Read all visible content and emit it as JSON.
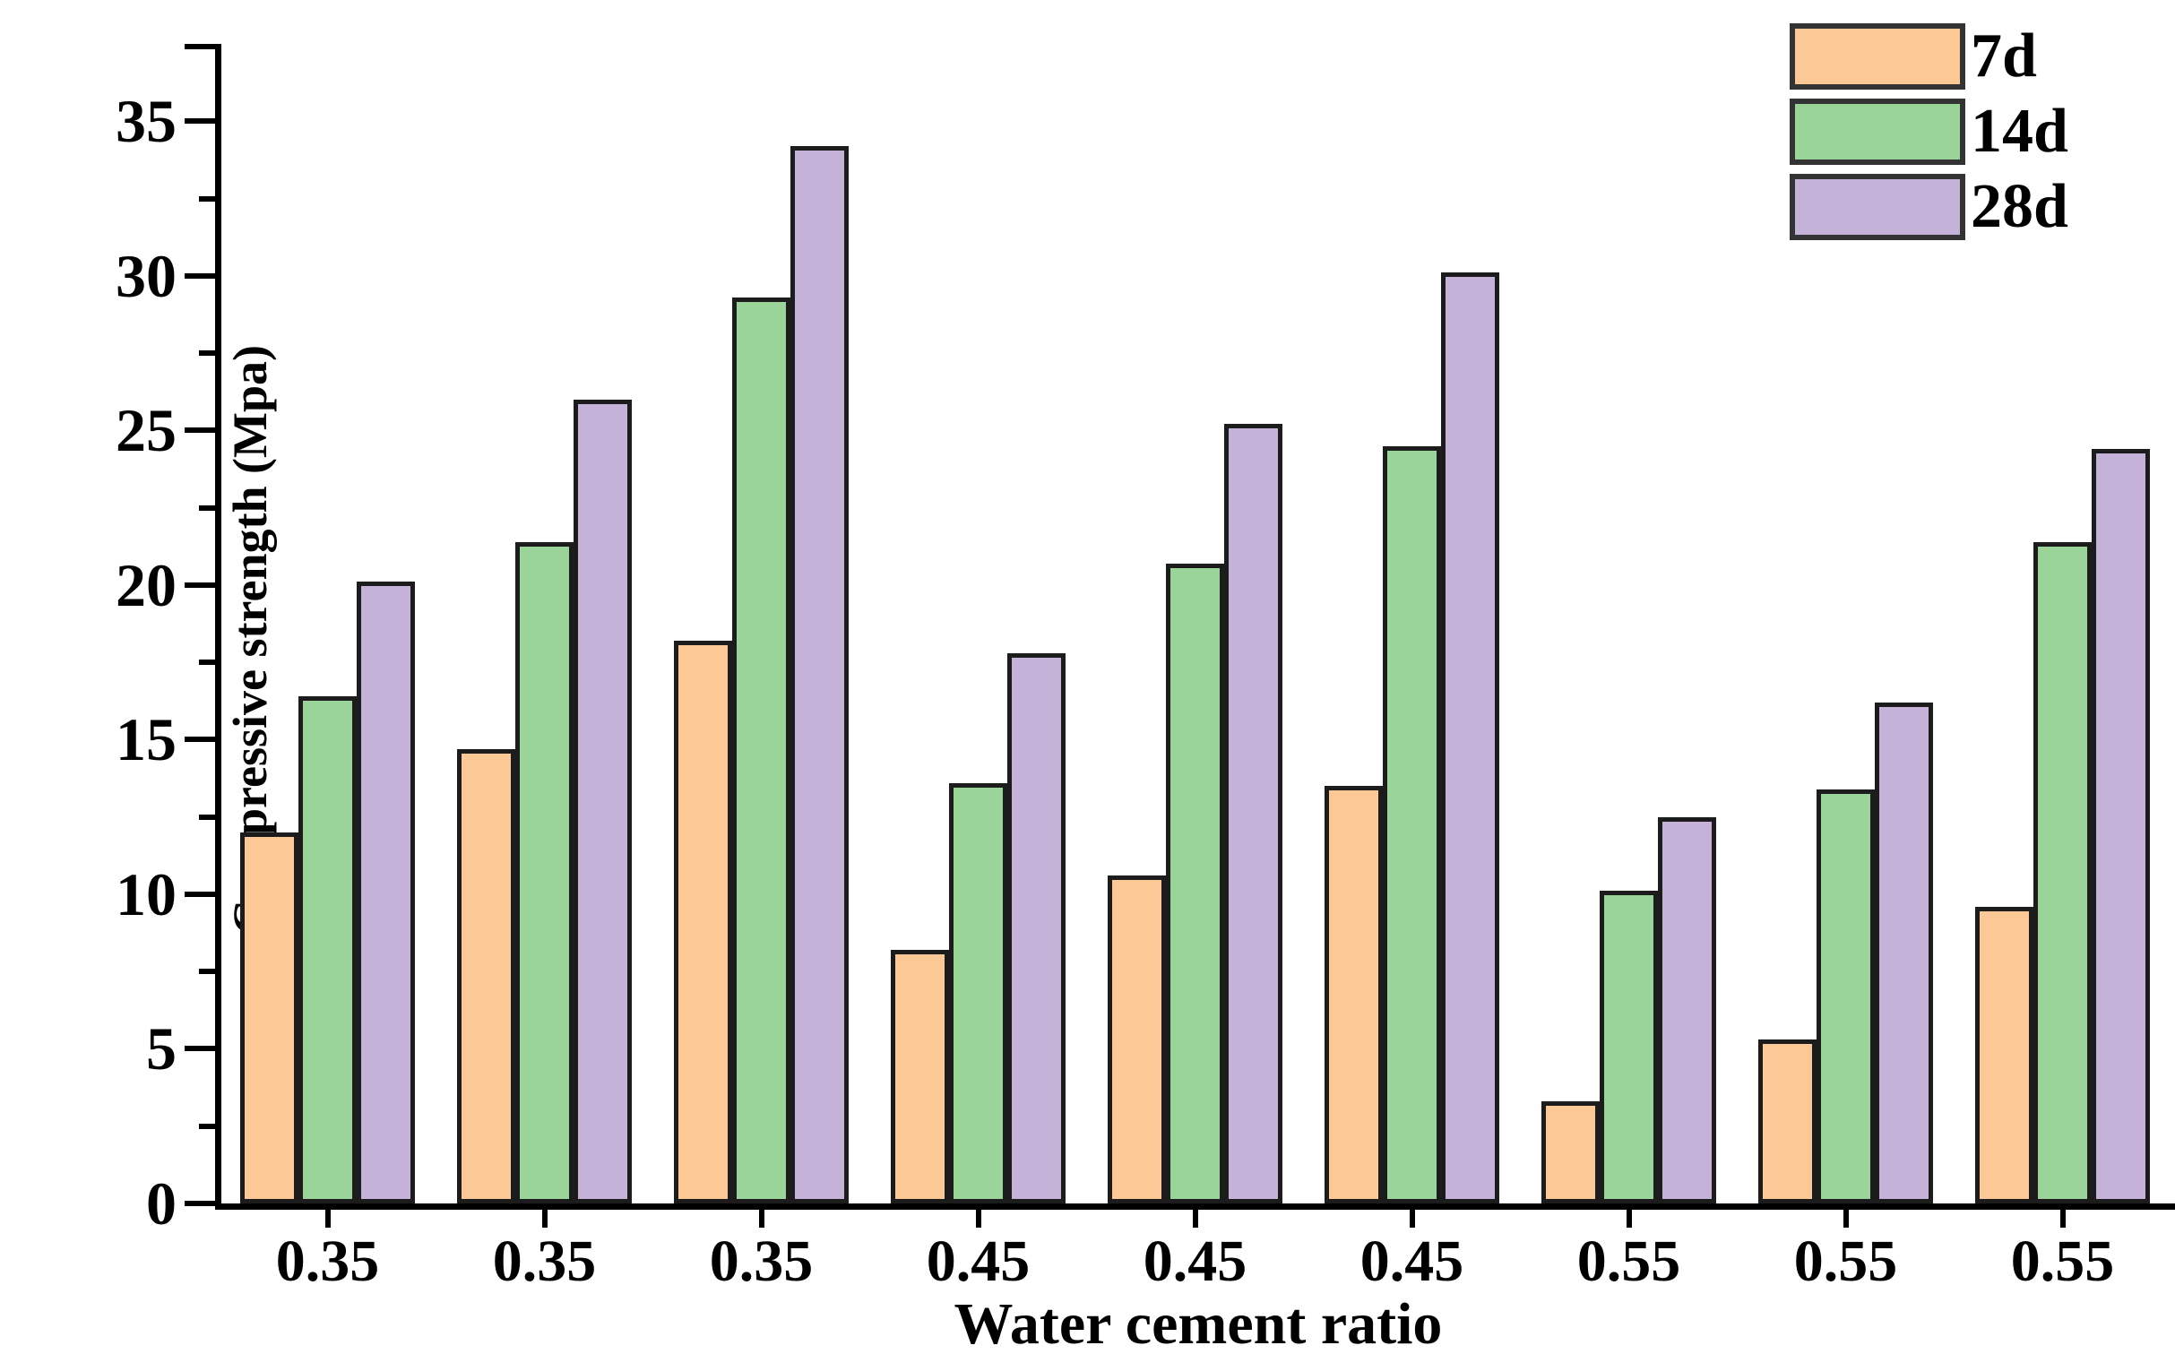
{
  "figure": {
    "background": "#ffffff"
  },
  "y_axis": {
    "title": "Compressive strength (Mpa)",
    "major_ticks": [
      0,
      5,
      10,
      15,
      20,
      25,
      30,
      35
    ],
    "minor_ticks": [
      2.5,
      7.5,
      12.5,
      17.5,
      22.5,
      27.5,
      32.5
    ],
    "axis_max": 37.5
  },
  "x_axis": {
    "title": "Water cement ratio"
  },
  "legend": {
    "labels": [
      "7d",
      "14d",
      "28d"
    ]
  },
  "colors": {
    "series_7d": "#FBC896",
    "series_14d": "#9AD498",
    "series_28d": "#C4B2D8",
    "bar_border": "#1c1c1c",
    "axis": "#000000"
  },
  "chart_data": {
    "type": "bar",
    "title": "",
    "xlabel": "Water cement ratio",
    "ylabel": "Compressive strength (Mpa)",
    "categories": [
      "0.35",
      "0.35",
      "0.35",
      "0.45",
      "0.45",
      "0.45",
      "0.55",
      "0.55",
      "0.55"
    ],
    "series": [
      {
        "name": "7d",
        "color": "#FBC896",
        "values": [
          12.0,
          14.7,
          18.2,
          8.2,
          10.6,
          13.5,
          3.3,
          5.3,
          9.6
        ]
      },
      {
        "name": "14d",
        "color": "#9AD498",
        "values": [
          16.4,
          21.4,
          29.3,
          13.6,
          20.7,
          24.5,
          10.1,
          13.4,
          21.4
        ]
      },
      {
        "name": "28d",
        "color": "#C4B2D8",
        "values": [
          20.1,
          26.0,
          34.2,
          17.8,
          25.2,
          30.1,
          12.5,
          16.2,
          24.4
        ]
      }
    ],
    "ylim": [
      0,
      37.5
    ],
    "yticks_step": 5,
    "minor_step": 2.5,
    "grid": false,
    "legend_position": "top-right"
  }
}
